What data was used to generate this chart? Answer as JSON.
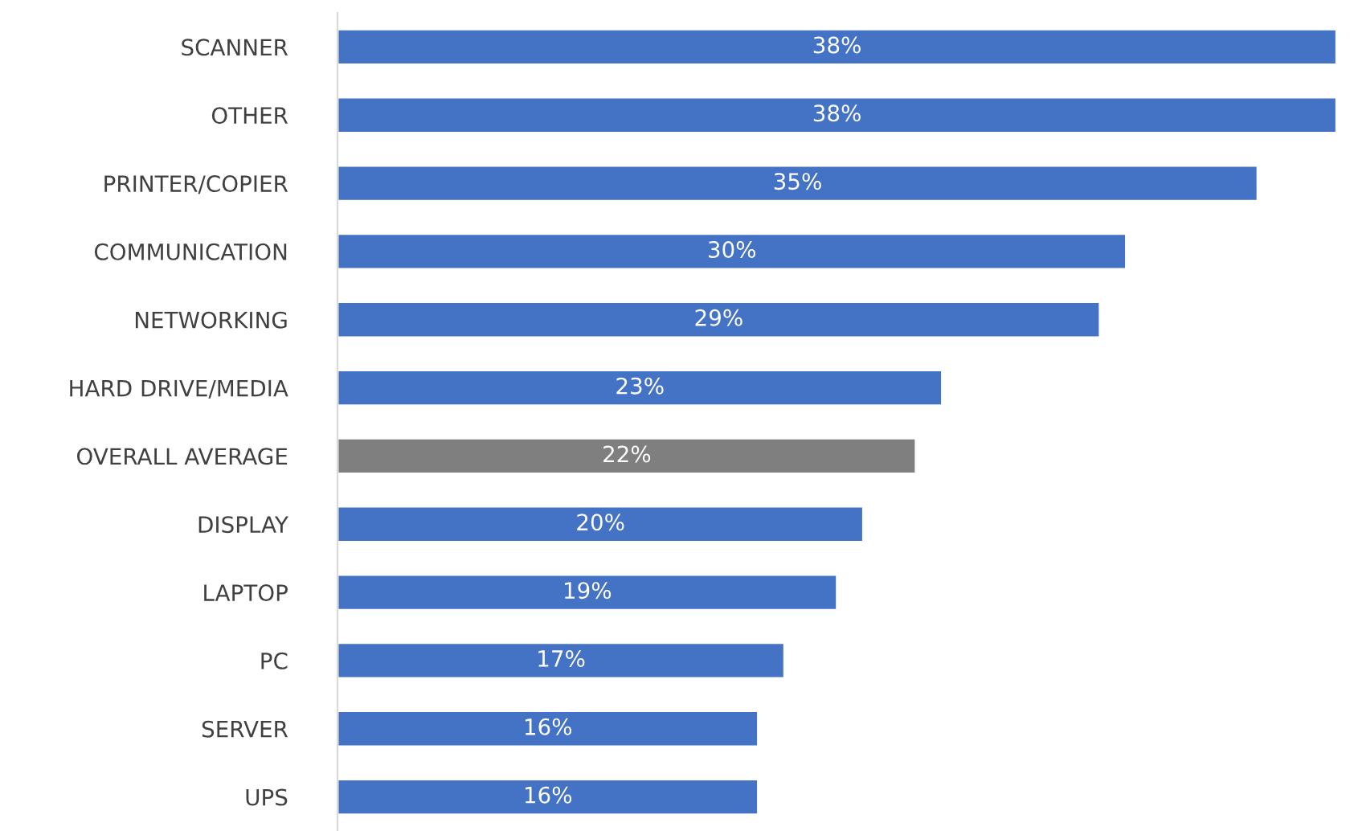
{
  "chart_data": {
    "type": "bar",
    "orientation": "horizontal",
    "categories": [
      "SCANNER",
      "OTHER",
      "PRINTER/COPIER",
      "COMMUNICATION",
      "NETWORKING",
      "HARD DRIVE/MEDIA",
      "OVERALL AVERAGE",
      "DISPLAY",
      "LAPTOP",
      "PC",
      "SERVER",
      "UPS"
    ],
    "values": [
      38,
      38,
      35,
      30,
      29,
      23,
      22,
      20,
      19,
      17,
      16,
      16
    ],
    "colors": [
      "#4472c4",
      "#4472c4",
      "#4472c4",
      "#4472c4",
      "#4472c4",
      "#4472c4",
      "#7f7f7f",
      "#4472c4",
      "#4472c4",
      "#4472c4",
      "#4472c4",
      "#4472c4"
    ],
    "value_labels": [
      "38%",
      "38%",
      "35%",
      "30%",
      "29%",
      "23%",
      "22%",
      "20%",
      "19%",
      "17%",
      "16%",
      "16%"
    ],
    "grid": false,
    "legend": false
  }
}
